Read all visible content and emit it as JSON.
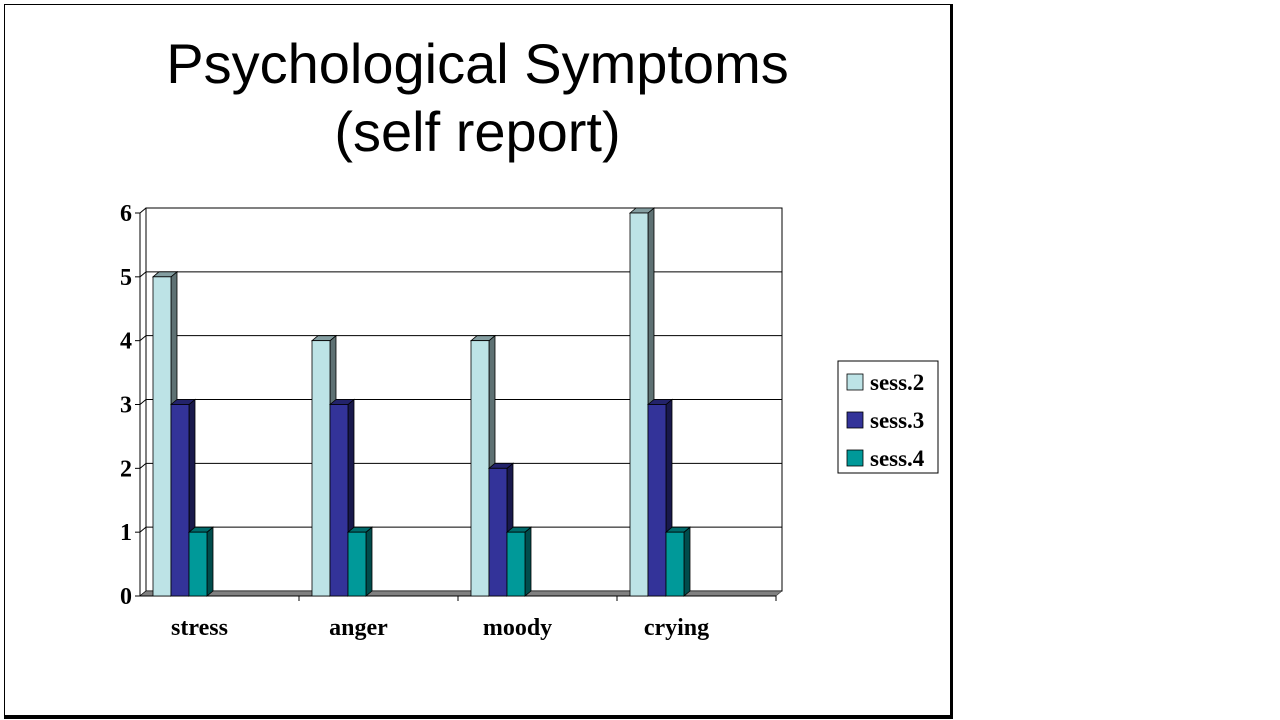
{
  "chart_data": {
    "type": "bar",
    "title": "Psychological Symptoms",
    "subtitle": "(self report)",
    "categories": [
      "stress",
      "anger",
      "moody",
      "crying"
    ],
    "series": [
      {
        "name": "sess.2",
        "color": "#BDE3E6",
        "values": [
          5,
          4,
          4,
          6
        ]
      },
      {
        "name": "sess.3",
        "color": "#333399",
        "values": [
          3,
          3,
          2,
          3
        ]
      },
      {
        "name": "sess.4",
        "color": "#009999",
        "values": [
          1,
          1,
          1,
          1
        ]
      }
    ],
    "yticks": [
      "0",
      "1",
      "2",
      "3",
      "4",
      "5",
      "6"
    ],
    "ylim": [
      0,
      6
    ],
    "grid": true,
    "legend": "right",
    "xlabel": "",
    "ylabel": ""
  }
}
